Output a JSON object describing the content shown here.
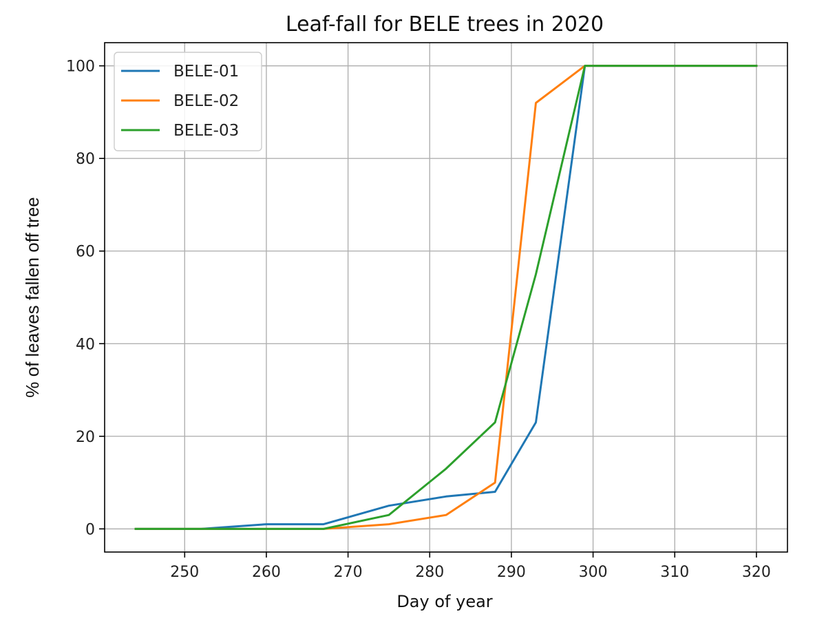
{
  "chart_data": {
    "type": "line",
    "title": "Leaf-fall for BELE trees in 2020",
    "xlabel": "Day of year",
    "ylabel": "% of leaves fallen off tree",
    "xlim": [
      240.2,
      323.8
    ],
    "ylim": [
      -5,
      105
    ],
    "xticks": [
      250,
      260,
      270,
      280,
      290,
      300,
      310,
      320
    ],
    "yticks": [
      0,
      20,
      40,
      60,
      80,
      100
    ],
    "grid": true,
    "legend": {
      "placement": "upper-left"
    },
    "series": [
      {
        "name": "BELE-01",
        "color": "#1f77b4",
        "x": [
          244,
          252,
          260,
          267,
          275,
          282,
          288,
          293,
          299,
          320
        ],
        "y": [
          0,
          0,
          1,
          1,
          5,
          7,
          8,
          23,
          100,
          100
        ]
      },
      {
        "name": "BELE-02",
        "color": "#ff7f0e",
        "x": [
          244,
          252,
          260,
          267,
          275,
          282,
          288,
          293,
          299,
          320
        ],
        "y": [
          0,
          0,
          0,
          0,
          1,
          3,
          10,
          92,
          100,
          100
        ]
      },
      {
        "name": "BELE-03",
        "color": "#2ca02c",
        "x": [
          244,
          252,
          260,
          267,
          275,
          282,
          288,
          293,
          299,
          320
        ],
        "y": [
          0,
          0,
          0,
          0,
          3,
          13,
          23,
          55,
          100,
          100
        ]
      }
    ]
  }
}
